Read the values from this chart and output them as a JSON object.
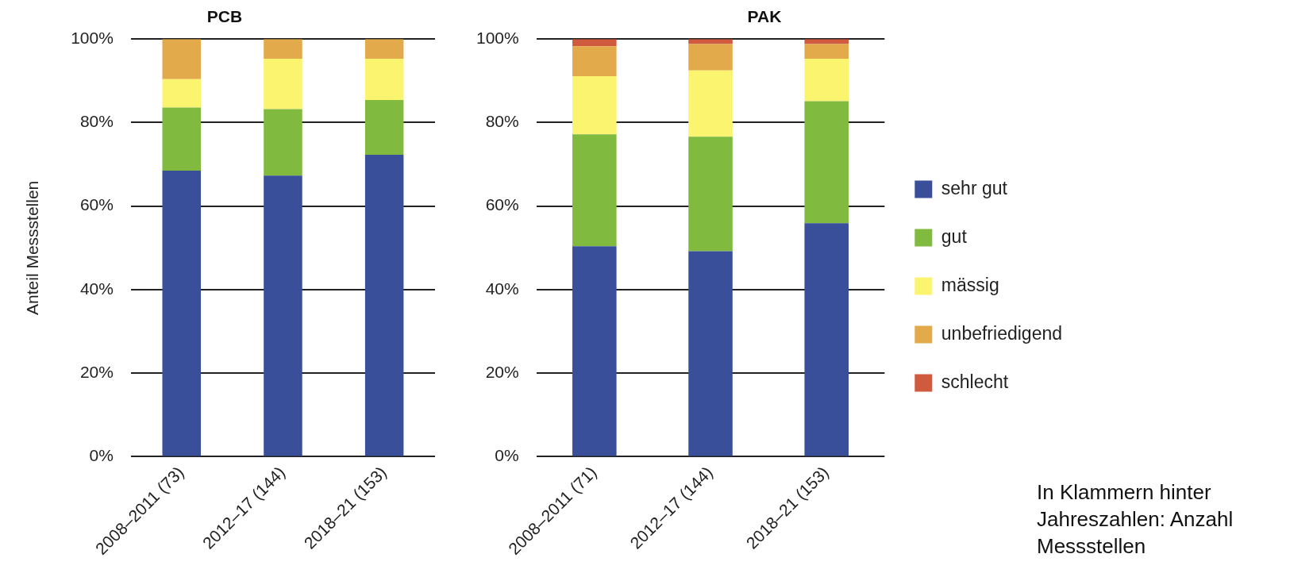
{
  "chart_data": [
    {
      "type": "bar",
      "title": "PCB",
      "ylabel": "Anteil Messstellen",
      "stacked": true,
      "categories": [
        "2008–2011 (73)",
        "2012–17 (144)",
        "2018–21 (153)"
      ],
      "series": [
        {
          "color": "#3a4f9a",
          "values": [
            68.5,
            67.3,
            72.3
          ]
        },
        {
          "color": "#80ba3e",
          "values": [
            15.1,
            15.9,
            13.1
          ]
        },
        {
          "color": "#fbf46e",
          "values": [
            6.8,
            12.1,
            9.9
          ]
        },
        {
          "color": "#e2aa4a",
          "values": [
            9.6,
            4.7,
            4.7
          ]
        }
      ],
      "ylim": [
        0,
        100
      ],
      "yticks": [
        {
          "value": 0,
          "label": "0%"
        },
        {
          "value": 20,
          "label": "20%"
        },
        {
          "value": 40,
          "label": "40%"
        },
        {
          "value": 60,
          "label": "60%"
        },
        {
          "value": 80,
          "label": "80%"
        },
        {
          "value": 100,
          "label": "100%"
        }
      ],
      "grid": "y",
      "legend": false
    },
    {
      "type": "bar",
      "title": "PAK",
      "stacked": true,
      "categories": [
        "2008–2011 (71)",
        "2012–17 (144)",
        "2018–21 (153)"
      ],
      "series": [
        {
          "name": "sehr gut",
          "color": "#3a4f9a",
          "values": [
            50.4,
            49.2,
            55.9
          ]
        },
        {
          "name": "gut",
          "color": "#80ba3e",
          "values": [
            26.8,
            27.4,
            29.2
          ]
        },
        {
          "name": "mässig",
          "color": "#fbf46e",
          "values": [
            13.9,
            15.9,
            10.2
          ]
        },
        {
          "name": "unbefriedigend",
          "color": "#e2aa4a",
          "values": [
            7.2,
            6.3,
            3.5
          ]
        },
        {
          "name": "schlecht",
          "color": "#d05a3e",
          "values": [
            1.7,
            1.2,
            1.2
          ]
        }
      ],
      "ylim": [
        0,
        100
      ],
      "yticks": [
        {
          "value": 0,
          "label": "0%"
        },
        {
          "value": 20,
          "label": "20%"
        },
        {
          "value": 40,
          "label": "40%"
        },
        {
          "value": 60,
          "label": "60%"
        },
        {
          "value": 80,
          "label": "80%"
        },
        {
          "value": 100,
          "label": "100%"
        }
      ],
      "grid": "y",
      "legend": "right",
      "annotations": [
        "In Klammern hinter Jahreszahlen: Anzahl Messstellen"
      ]
    }
  ]
}
